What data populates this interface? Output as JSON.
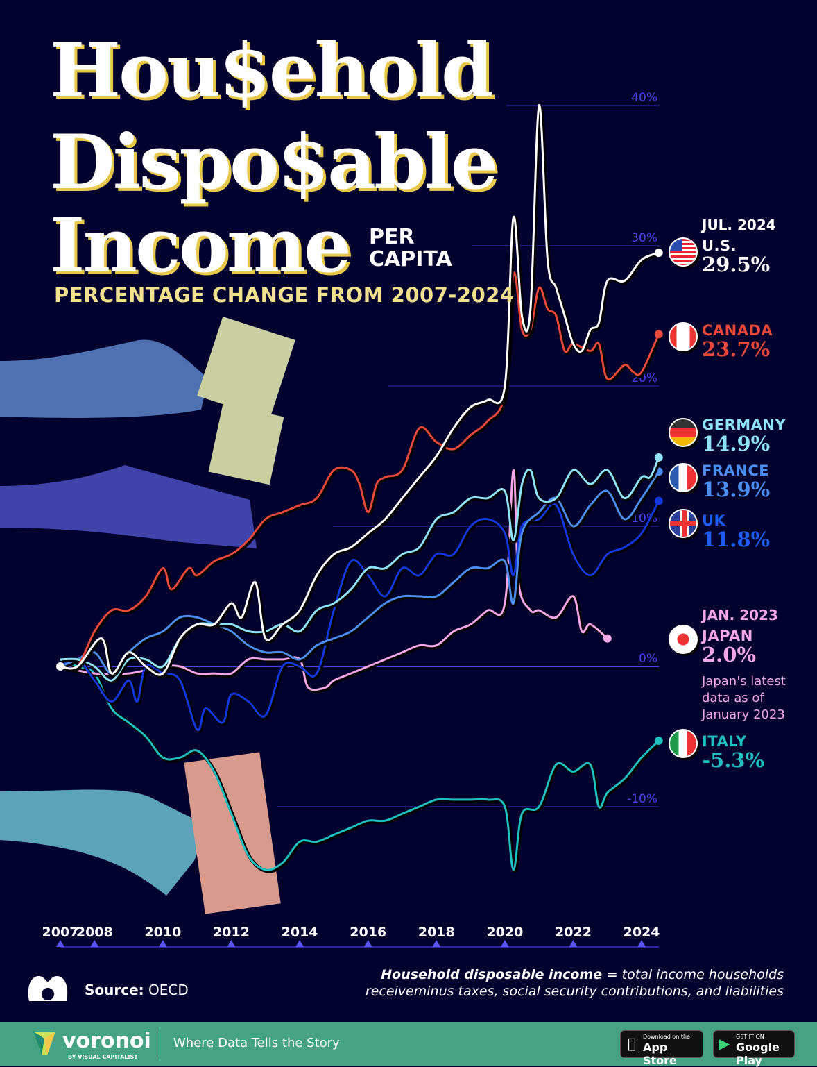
{
  "title": {
    "line1": "Hou$ehold",
    "line2": "Dispo$able",
    "line3": "Income",
    "per_capita_1": "PER",
    "per_capita_2": "CAPITA",
    "subtitle": "PERCENTAGE CHANGE FROM 2007-2024"
  },
  "chart_data": {
    "type": "line",
    "title": "Household Disposable Income Per Capita",
    "subtitle": "Percentage change from 2007-2024",
    "xlim": [
      2007,
      2024.5
    ],
    "ylim": [
      -15,
      40
    ],
    "x_ticks": [
      "2007",
      "2008",
      "2010",
      "2012",
      "2014",
      "2016",
      "2018",
      "2020",
      "2022",
      "2024"
    ],
    "y_ticks": [
      {
        "value": 40,
        "label": "40%"
      },
      {
        "value": 30,
        "label": "30%"
      },
      {
        "value": 20,
        "label": "20%"
      },
      {
        "value": 10,
        "label": "10%"
      },
      {
        "value": 0,
        "label": "0%"
      },
      {
        "value": -10,
        "label": "-10%"
      }
    ],
    "grid": true,
    "series": [
      {
        "name": "U.S.",
        "color": "#ffffff",
        "final_label": "29.5%",
        "points": [
          [
            2007,
            0
          ],
          [
            2007.5,
            0
          ],
          [
            2008.2,
            2
          ],
          [
            2008.5,
            -0.5
          ],
          [
            2009,
            1
          ],
          [
            2009.5,
            0
          ],
          [
            2010,
            -0.5
          ],
          [
            2010.5,
            2
          ],
          [
            2011,
            3
          ],
          [
            2011.5,
            3
          ],
          [
            2012,
            4.5
          ],
          [
            2012.3,
            3.5
          ],
          [
            2012.7,
            6
          ],
          [
            2013,
            2
          ],
          [
            2013.5,
            3
          ],
          [
            2014,
            4
          ],
          [
            2014.5,
            6.5
          ],
          [
            2015,
            8
          ],
          [
            2015.5,
            8.5
          ],
          [
            2016,
            9.5
          ],
          [
            2016.5,
            10.5
          ],
          [
            2017,
            12
          ],
          [
            2017.5,
            13.5
          ],
          [
            2018,
            15
          ],
          [
            2018.5,
            17
          ],
          [
            2019,
            18.5
          ],
          [
            2019.5,
            19
          ],
          [
            2020,
            20
          ],
          [
            2020.25,
            32
          ],
          [
            2020.5,
            25
          ],
          [
            2020.75,
            25.5
          ],
          [
            2021,
            40
          ],
          [
            2021.25,
            29
          ],
          [
            2021.5,
            27
          ],
          [
            2021.75,
            25
          ],
          [
            2022,
            23
          ],
          [
            2022.25,
            22.5
          ],
          [
            2022.5,
            24
          ],
          [
            2022.75,
            24.5
          ],
          [
            2023,
            27.5
          ],
          [
            2023.5,
            27.5
          ],
          [
            2024,
            29
          ],
          [
            2024.5,
            29.5
          ]
        ]
      },
      {
        "name": "CANADA",
        "color": "#e8483a",
        "final_label": "23.7%",
        "points": [
          [
            2007,
            0
          ],
          [
            2007.5,
            0
          ],
          [
            2008,
            2.5
          ],
          [
            2008.5,
            4
          ],
          [
            2009,
            4
          ],
          [
            2009.5,
            5
          ],
          [
            2010,
            7
          ],
          [
            2010.25,
            5.5
          ],
          [
            2010.75,
            7
          ],
          [
            2011,
            6.5
          ],
          [
            2011.5,
            7.5
          ],
          [
            2012,
            8
          ],
          [
            2012.5,
            9
          ],
          [
            2013,
            10.5
          ],
          [
            2013.5,
            11
          ],
          [
            2014,
            11.5
          ],
          [
            2014.5,
            12
          ],
          [
            2015,
            14
          ],
          [
            2015.5,
            14
          ],
          [
            2015.75,
            13
          ],
          [
            2016,
            11
          ],
          [
            2016.25,
            13
          ],
          [
            2016.5,
            13.5
          ],
          [
            2017,
            14
          ],
          [
            2017.5,
            17
          ],
          [
            2018,
            16
          ],
          [
            2018.5,
            15.5
          ],
          [
            2019,
            16.5
          ],
          [
            2019.5,
            17.5
          ],
          [
            2020,
            19.5
          ],
          [
            2020.25,
            28
          ],
          [
            2020.5,
            24
          ],
          [
            2020.75,
            24
          ],
          [
            2021,
            27
          ],
          [
            2021.25,
            25.5
          ],
          [
            2021.5,
            25
          ],
          [
            2021.75,
            22.5
          ],
          [
            2022,
            23
          ],
          [
            2022.5,
            22.5
          ],
          [
            2022.75,
            23
          ],
          [
            2023,
            20.5
          ],
          [
            2023.5,
            21.5
          ],
          [
            2023.75,
            21
          ],
          [
            2024,
            21
          ],
          [
            2024.5,
            23.7
          ]
        ]
      },
      {
        "name": "GERMANY",
        "color": "#8fe3f8",
        "final_label": "14.9%",
        "points": [
          [
            2007,
            0.5
          ],
          [
            2007.5,
            0.5
          ],
          [
            2008,
            0
          ],
          [
            2008.5,
            -1
          ],
          [
            2009,
            0.5
          ],
          [
            2009.5,
            0.5
          ],
          [
            2010,
            0
          ],
          [
            2010.5,
            2
          ],
          [
            2011,
            3
          ],
          [
            2011.5,
            3
          ],
          [
            2012,
            3
          ],
          [
            2012.5,
            2.5
          ],
          [
            2013,
            2.5
          ],
          [
            2013.5,
            3
          ],
          [
            2014,
            2.5
          ],
          [
            2014.5,
            4
          ],
          [
            2015,
            4.5
          ],
          [
            2015.5,
            5.5
          ],
          [
            2016,
            7
          ],
          [
            2016.5,
            7
          ],
          [
            2017,
            8
          ],
          [
            2017.5,
            8.5
          ],
          [
            2018,
            10.5
          ],
          [
            2018.5,
            11
          ],
          [
            2019,
            12
          ],
          [
            2019.5,
            12
          ],
          [
            2020,
            12.5
          ],
          [
            2020.25,
            9
          ],
          [
            2020.5,
            13
          ],
          [
            2020.75,
            14
          ],
          [
            2021,
            12
          ],
          [
            2021.5,
            12
          ],
          [
            2022,
            14
          ],
          [
            2022.5,
            13
          ],
          [
            2023,
            14
          ],
          [
            2023.5,
            12
          ],
          [
            2024,
            13.5
          ],
          [
            2024.25,
            13.5
          ],
          [
            2024.5,
            14.9
          ]
        ]
      },
      {
        "name": "FRANCE",
        "color": "#4b8ef0",
        "final_label": "13.9%",
        "points": [
          [
            2007,
            0
          ],
          [
            2007.5,
            0.5
          ],
          [
            2008,
            1
          ],
          [
            2008.5,
            -0.5
          ],
          [
            2009,
            1
          ],
          [
            2009.5,
            2
          ],
          [
            2010,
            2.5
          ],
          [
            2010.5,
            3.5
          ],
          [
            2011,
            3.5
          ],
          [
            2011.5,
            3
          ],
          [
            2012,
            2.5
          ],
          [
            2012.5,
            1.5
          ],
          [
            2013,
            1
          ],
          [
            2013.5,
            1
          ],
          [
            2014,
            0.5
          ],
          [
            2014.5,
            1.5
          ],
          [
            2015,
            2
          ],
          [
            2015.5,
            2.5
          ],
          [
            2016,
            3.5
          ],
          [
            2016.5,
            4.5
          ],
          [
            2017,
            5
          ],
          [
            2017.5,
            5
          ],
          [
            2018,
            5
          ],
          [
            2018.5,
            6
          ],
          [
            2019,
            7
          ],
          [
            2019.5,
            7
          ],
          [
            2020,
            7.5
          ],
          [
            2020.25,
            4.5
          ],
          [
            2020.5,
            9.5
          ],
          [
            2021,
            11
          ],
          [
            2021.5,
            12
          ],
          [
            2022,
            10
          ],
          [
            2022.5,
            11.5
          ],
          [
            2023,
            12.5
          ],
          [
            2023.5,
            10.5
          ],
          [
            2024,
            12
          ],
          [
            2024.5,
            13.9
          ]
        ]
      },
      {
        "name": "UK",
        "color": "#1438e0",
        "final_label": "11.8%",
        "points": [
          [
            2007,
            0
          ],
          [
            2007.5,
            0.5
          ],
          [
            2008,
            -1
          ],
          [
            2008.5,
            -2.5
          ],
          [
            2009,
            -1
          ],
          [
            2009.25,
            -2.5
          ],
          [
            2009.5,
            0
          ],
          [
            2010,
            -0.5
          ],
          [
            2010.5,
            -1
          ],
          [
            2011,
            -4.5
          ],
          [
            2011.25,
            -3
          ],
          [
            2011.75,
            -4
          ],
          [
            2012,
            -2
          ],
          [
            2012.5,
            -2.5
          ],
          [
            2013,
            -3.5
          ],
          [
            2013.5,
            0
          ],
          [
            2014,
            0
          ],
          [
            2014.5,
            -0.5
          ],
          [
            2015,
            4
          ],
          [
            2015.5,
            7.5
          ],
          [
            2016,
            6.5
          ],
          [
            2016.5,
            5
          ],
          [
            2017,
            7
          ],
          [
            2017.5,
            6.5
          ],
          [
            2018,
            8
          ],
          [
            2018.5,
            8
          ],
          [
            2019,
            10
          ],
          [
            2019.5,
            10.5
          ],
          [
            2020,
            9.5
          ],
          [
            2020.25,
            6.5
          ],
          [
            2020.5,
            10
          ],
          [
            2021,
            10.5
          ],
          [
            2021.5,
            11.5
          ],
          [
            2022,
            8
          ],
          [
            2022.5,
            6.5
          ],
          [
            2023,
            8
          ],
          [
            2023.5,
            8.5
          ],
          [
            2024,
            9.5
          ],
          [
            2024.5,
            11.8
          ]
        ]
      },
      {
        "name": "JAPAN",
        "color": "#f5a6e6",
        "final_label": "2.0%",
        "points": [
          [
            2007,
            0
          ],
          [
            2008,
            -0.5
          ],
          [
            2009,
            -0.5
          ],
          [
            2010,
            0
          ],
          [
            2010.5,
            0
          ],
          [
            2011,
            -0.5
          ],
          [
            2011.5,
            -0.5
          ],
          [
            2012,
            -0.5
          ],
          [
            2012.5,
            0.5
          ],
          [
            2013,
            0.5
          ],
          [
            2013.5,
            0.5
          ],
          [
            2014,
            0.5
          ],
          [
            2014.25,
            -1.5
          ],
          [
            2014.75,
            -1.5
          ],
          [
            2015,
            -1
          ],
          [
            2015.5,
            -0.5
          ],
          [
            2016,
            0
          ],
          [
            2016.5,
            0.5
          ],
          [
            2017,
            1
          ],
          [
            2017.5,
            1.5
          ],
          [
            2018,
            1.5
          ],
          [
            2018.5,
            2.5
          ],
          [
            2019,
            3
          ],
          [
            2019.5,
            4
          ],
          [
            2020,
            4.5
          ],
          [
            2020.25,
            14
          ],
          [
            2020.4,
            6
          ],
          [
            2020.75,
            4
          ],
          [
            2021,
            4
          ],
          [
            2021.5,
            3.5
          ],
          [
            2022,
            5
          ],
          [
            2022.25,
            2.5
          ],
          [
            2022.5,
            3
          ],
          [
            2023,
            2.0
          ]
        ]
      },
      {
        "name": "ITALY",
        "color": "#1fc0c0",
        "final_label": "-5.3%",
        "points": [
          [
            2007,
            0.5
          ],
          [
            2007.5,
            0
          ],
          [
            2008,
            -0.5
          ],
          [
            2008.5,
            -3
          ],
          [
            2009,
            -4
          ],
          [
            2009.5,
            -5
          ],
          [
            2010,
            -6.5
          ],
          [
            2010.5,
            -6.5
          ],
          [
            2011,
            -6
          ],
          [
            2011.5,
            -7.5
          ],
          [
            2012,
            -10.5
          ],
          [
            2012.5,
            -13.5
          ],
          [
            2013,
            -14.5
          ],
          [
            2013.5,
            -14
          ],
          [
            2014,
            -12.5
          ],
          [
            2014.5,
            -12.5
          ],
          [
            2015,
            -12
          ],
          [
            2015.5,
            -11.5
          ],
          [
            2016,
            -11
          ],
          [
            2016.5,
            -11
          ],
          [
            2017,
            -10.5
          ],
          [
            2017.5,
            -10
          ],
          [
            2018,
            -9.5
          ],
          [
            2018.5,
            -9.5
          ],
          [
            2019,
            -9.5
          ],
          [
            2019.5,
            -9.5
          ],
          [
            2020,
            -10
          ],
          [
            2020.25,
            -14.5
          ],
          [
            2020.5,
            -10.5
          ],
          [
            2021,
            -10
          ],
          [
            2021.5,
            -7
          ],
          [
            2022,
            -7.5
          ],
          [
            2022.5,
            -7
          ],
          [
            2022.75,
            -10
          ],
          [
            2023,
            -9
          ],
          [
            2023.5,
            -8
          ],
          [
            2024,
            -6.5
          ],
          [
            2024.5,
            -5.3
          ]
        ]
      }
    ]
  },
  "legend": {
    "us_date": "JUL. 2024",
    "japan_date": "JAN. 2023",
    "japan_note": [
      "Japan's latest",
      "data as of",
      "January 2023"
    ]
  },
  "source": {
    "label": "Source:",
    "value": "OECD"
  },
  "definition": {
    "term": "Household disposable income =",
    "line1": " total income households",
    "line2": "receiveminus taxes, social security contributions, and liabilities"
  },
  "footer": {
    "brand": "voronoi",
    "by": "BY VISUAL CAPITALIST",
    "tagline": "Where Data Tells the Story",
    "app_store_small": "Download on the",
    "app_store": "App Store",
    "google_small": "GET IT ON",
    "google": "Google Play",
    "bg_color": "#45a383"
  }
}
